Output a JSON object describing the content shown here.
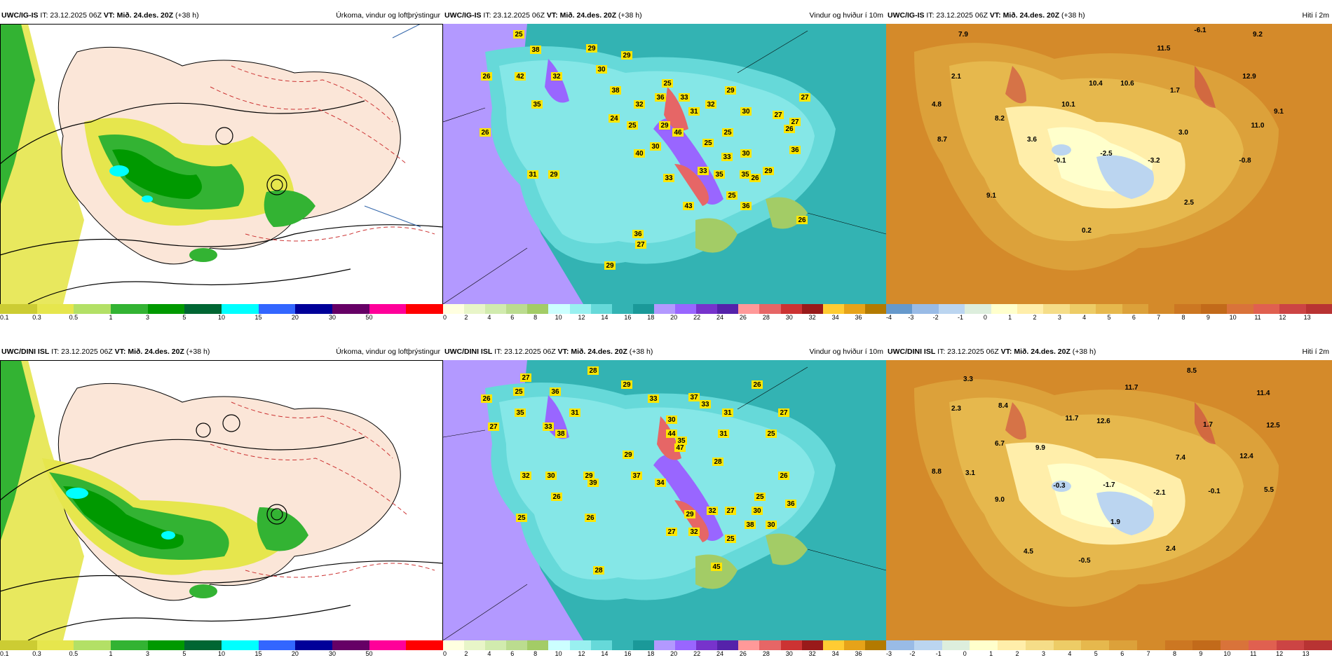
{
  "rows": [
    {
      "model": "UWC/IG-IS",
      "it": "IT: 23.12.2025 06Z",
      "vt_label": "VT:",
      "vt": "Mið. 24.des. 20Z",
      "lead": "(+38 h)",
      "panels": [
        {
          "title": "Úrkoma, vindur og loftþrýstingur"
        },
        {
          "title": "Vindur og hviður í 10m",
          "labels": [
            "25",
            "26",
            "42",
            "38",
            "32",
            "26",
            "29",
            "30",
            "38",
            "29",
            "25",
            "36",
            "29",
            "33",
            "25",
            "24",
            "32",
            "29",
            "31",
            "32",
            "35",
            "46",
            "30",
            "25",
            "33",
            "25",
            "33",
            "30",
            "30",
            "31",
            "29",
            "40",
            "33",
            "27",
            "26",
            "36",
            "29",
            "43",
            "35",
            "35",
            "25",
            "26",
            "36",
            "27",
            "27",
            "26",
            "36",
            "29",
            "27"
          ]
        },
        {
          "title": "Hiti í 2m",
          "temps": [
            "7.9",
            "-6.1",
            "9.2",
            "11.5",
            "2.1",
            "10.4",
            "10.6",
            "12.9",
            "4.8",
            "10.1",
            "1.7",
            "9.1",
            "8.2",
            "3.0",
            "11.0",
            "8.7",
            "3.6",
            "-0.1",
            "-2.5",
            "-3.2",
            "-0.8",
            "9.1",
            "2.5",
            "0.2"
          ]
        }
      ],
      "precip_scale": [
        "0.1",
        "0.3",
        "0.5",
        "1",
        "3",
        "5",
        "10",
        "15",
        "20",
        "30",
        "50"
      ],
      "wind_scale": [
        "0",
        "2",
        "4",
        "6",
        "8",
        "10",
        "12",
        "14",
        "16",
        "18",
        "20",
        "22",
        "24",
        "26",
        "28",
        "30",
        "32",
        "34",
        "36"
      ],
      "temp_scale": [
        "-4",
        "-3",
        "-2",
        "-1",
        "0",
        "1",
        "2",
        "3",
        "4",
        "5",
        "6",
        "7",
        "8",
        "9",
        "10",
        "11",
        "12",
        "13"
      ]
    },
    {
      "model": "UWC/DINI ISL",
      "it": "IT: 23.12.2025 06Z",
      "vt_label": "VT:",
      "vt": "Mið. 24.des. 20Z",
      "lead": "(+38 h)",
      "panels": [
        {
          "title": "Úrkoma, vindur og loftþrýstingur"
        },
        {
          "title": "Vindur og hviður í 10m",
          "labels": [
            "27",
            "25",
            "36",
            "28",
            "26",
            "35",
            "31",
            "29",
            "27",
            "33",
            "38",
            "33",
            "44",
            "30",
            "37",
            "33",
            "26",
            "35",
            "47",
            "31",
            "31",
            "28",
            "27",
            "25",
            "29",
            "29",
            "32",
            "30",
            "39",
            "37",
            "34",
            "32",
            "27",
            "30",
            "26",
            "36",
            "30",
            "25",
            "45",
            "29",
            "32",
            "25",
            "38",
            "26",
            "26",
            "25",
            "28",
            "27"
          ]
        },
        {
          "title": "Hiti í 2m",
          "temps": [
            "3.3",
            "8.5",
            "11.7",
            "11.4",
            "2.3",
            "8.4",
            "11.7",
            "12.6",
            "12.5",
            "6.7",
            "9.9",
            "1.7",
            "7.4",
            "12.4",
            "8.8",
            "3.1",
            "-0.3",
            "-1.7",
            "-2.1",
            "-0.1",
            "5.5",
            "9.0",
            "1.9",
            "4.5",
            "2.4",
            "-0.5"
          ]
        }
      ],
      "precip_scale": [
        "0.1",
        "0.3",
        "0.5",
        "1",
        "3",
        "5",
        "10",
        "15",
        "20",
        "30",
        "50"
      ],
      "wind_scale": [
        "0",
        "2",
        "4",
        "6",
        "8",
        "10",
        "12",
        "14",
        "16",
        "18",
        "20",
        "22",
        "24",
        "26",
        "28",
        "30",
        "32",
        "34",
        "36"
      ],
      "temp_scale": [
        "-3",
        "-2",
        "-1",
        "0",
        "1",
        "2",
        "3",
        "4",
        "5",
        "6",
        "7",
        "8",
        "9",
        "10",
        "11",
        "12",
        "13"
      ]
    }
  ],
  "colors": {
    "precip": [
      "#cccc33",
      "#e6e64d",
      "#b3e066",
      "#33b333",
      "#009900",
      "#006633",
      "#00ffff",
      "#3366ff",
      "#000099",
      "#660066",
      "#ff0099",
      "#ff0000"
    ],
    "wind": [
      "#ffffe0",
      "#e8f5c8",
      "#d1ebae",
      "#bbdc8f",
      "#a3cc66",
      "#ccffff",
      "#99f0f0",
      "#66d9d9",
      "#33b3b3",
      "#1a9999",
      "#b399ff",
      "#9966ff",
      "#7733cc",
      "#5522aa",
      "#ff9999",
      "#e66666",
      "#cc3333",
      "#991a1a",
      "#ffcc33",
      "#e6a319",
      "#b37a00"
    ],
    "temp": [
      "#6699cc",
      "#99bbe6",
      "#bbd5f0",
      "#ddeedd",
      "#ffffcc",
      "#ffeeaa",
      "#f5dd88",
      "#edcc66",
      "#e6b84d",
      "#dca13a",
      "#d48a2a",
      "#cc7722",
      "#c26a1a",
      "#d9733a",
      "#e06050",
      "#cc4444",
      "#b83333"
    ]
  }
}
